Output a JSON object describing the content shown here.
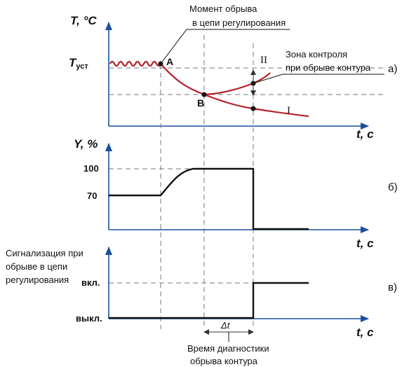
{
  "colors": {
    "axis": "#1a4fa0",
    "curve": "#b5202a",
    "signal": "#111111",
    "guide": "#777777"
  },
  "top_chart": {
    "y_title_main": "T",
    "y_title_unit": ", °C",
    "x_title": "t, c",
    "setpoint_main": "T",
    "setpoint_sub": "уст",
    "point_a": "A",
    "point_b": "B",
    "curve_1": "I",
    "curve_2": "II",
    "callout_break": [
      "Момент обрыва",
      "в цепи регулирования"
    ],
    "callout_zone": [
      "Зона контроля",
      "при обрыве контура"
    ],
    "panel_label": "а)"
  },
  "middle_chart": {
    "y_title": "Y, %",
    "x_title": "t, c",
    "tick_100": "100",
    "tick_70": "70",
    "panel_label": "б)"
  },
  "bottom_chart": {
    "side_label": [
      "Сигнализация при",
      "обрыве в цепи",
      "регулирования"
    ],
    "tick_on": "вкл.",
    "tick_off": "выкл.",
    "x_title": "t, c",
    "delta": "Δt",
    "caption": [
      "Время диагностики",
      "обрыва контура"
    ],
    "panel_label": "в)"
  }
}
